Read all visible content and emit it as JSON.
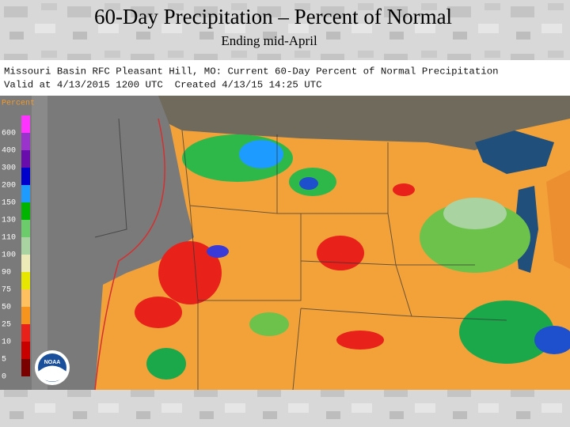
{
  "slide": {
    "title": "60-Day Precipitation – Percent of Normal",
    "subtitle": "Ending mid-April"
  },
  "map": {
    "header_line_1": "Missouri Basin RFC Pleasant Hill, MO: Current 60-Day Percent of Normal Precipitation",
    "header_line_2": "Valid at 4/13/2015 1200 UTC  Created 4/13/15 14:25 UTC",
    "logo": "NOAA",
    "legend": {
      "title": "Percent",
      "values": [
        600,
        400,
        300,
        200,
        150,
        130,
        110,
        100,
        90,
        75,
        50,
        25,
        10,
        5,
        0
      ],
      "colors": [
        "#ff33ff",
        "#9933cc",
        "#6a0dad",
        "#0000cc",
        "#1e9bff",
        "#00b400",
        "#6ccc6c",
        "#a9d3a0",
        "#ecebb8",
        "#e6e600",
        "#ffc060",
        "#f7941d",
        "#e8221a",
        "#c80000",
        "#7a0000"
      ]
    }
  }
}
